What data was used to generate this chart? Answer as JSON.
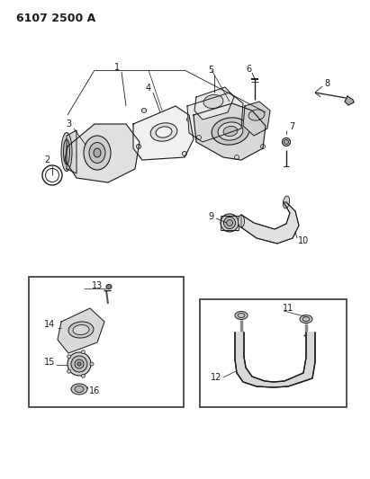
{
  "title": "6107 2500 A",
  "bg_color": "#ffffff",
  "line_color": "#1a1a1a",
  "fig_width": 4.11,
  "fig_height": 5.33,
  "dpi": 100
}
